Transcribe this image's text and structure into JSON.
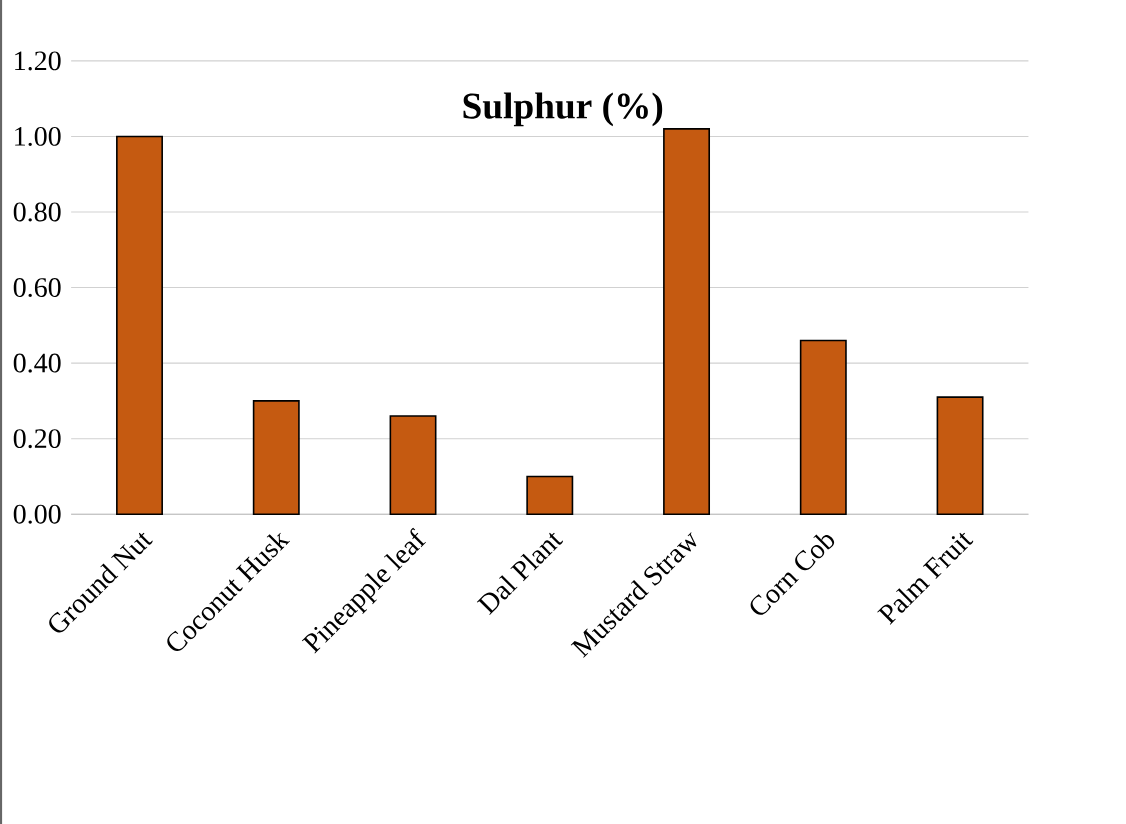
{
  "chart_data": {
    "type": "bar",
    "title": "Sulphur (%)",
    "categories": [
      "Ground Nut",
      "Coconut Husk",
      "Pineapple leaf",
      "Dal Plant",
      "Mustard Straw",
      "Corn Cob",
      "Palm Fruit"
    ],
    "values": [
      1.0,
      0.3,
      0.26,
      0.1,
      1.02,
      0.46,
      0.31
    ],
    "color": "#c55a11",
    "ylim": [
      0,
      1.2
    ],
    "yticks": [
      {
        "value": 0,
        "label": "0.00"
      },
      {
        "value": 0.2,
        "label": "0.20"
      },
      {
        "value": 0.4,
        "label": "0.40"
      },
      {
        "value": 0.6,
        "label": "0.60"
      },
      {
        "value": 0.8,
        "label": "0.80"
      },
      {
        "value": 1.0,
        "label": "1.00"
      },
      {
        "value": 1.2,
        "label": "1.20"
      }
    ],
    "grid": "y"
  }
}
